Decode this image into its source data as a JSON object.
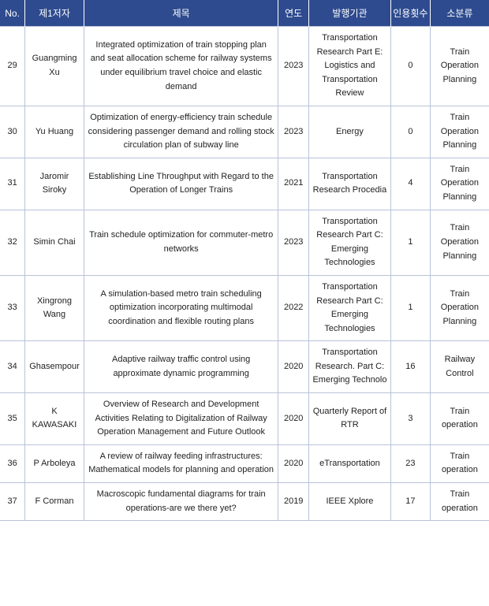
{
  "header": {
    "no": "No.",
    "author": "제1저자",
    "title": "제목",
    "year": "연도",
    "publisher": "발행기관",
    "citations": "인용횟수",
    "subcat": "소분류"
  },
  "rows": [
    {
      "no": "29",
      "author": "Guangming Xu",
      "title": "Integrated optimization of train stopping plan and seat allocation scheme for railway systems under equilibrium travel choice and elastic demand",
      "year": "2023",
      "publisher": "Transportation Research Part E: Logistics and Transportation Review",
      "citations": "0",
      "subcat": "Train Operation Planning"
    },
    {
      "no": "30",
      "author": "Yu Huang",
      "title": "Optimization of energy-efficiency train schedule considering passenger demand and rolling stock circulation plan of subway line",
      "year": "2023",
      "publisher": "Energy",
      "citations": "0",
      "subcat": "Train Operation Planning"
    },
    {
      "no": "31",
      "author": "Jaromir Siroky",
      "title": "Establishing Line Throughput with Regard to the Operation of Longer Trains",
      "year": "2021",
      "publisher": "Transportation Research Procedia",
      "citations": "4",
      "subcat": "Train Operation Planning"
    },
    {
      "no": "32",
      "author": "Simin Chai",
      "title": "Train schedule optimization for commuter-metro networks",
      "year": "2023",
      "publisher": "Transportation Research Part C: Emerging Technologies",
      "citations": "1",
      "subcat": "Train Operation Planning"
    },
    {
      "no": "33",
      "author": "Xingrong Wang",
      "title": "A simulation-based metro train scheduling optimization incorporating multimodal coordination and flexible routing plans",
      "year": "2022",
      "publisher": "Transportation Research Part C: Emerging Technologies",
      "citations": "1",
      "subcat": "Train Operation Planning"
    },
    {
      "no": "34",
      "author": "Ghasempour",
      "title": "Adaptive railway traffic control using approximate dynamic programming",
      "year": "2020",
      "publisher": "Transportation Research. Part C: Emerging Technolo",
      "citations": "16",
      "subcat": "Railway Control"
    },
    {
      "no": "35",
      "author": "K KAWASAKI",
      "title": "Overview of Research and Development Activities Relating to Digitalization of Railway Operation Management and Future Outlook",
      "year": "2020",
      "publisher": "Quarterly Report of RTR",
      "citations": "3",
      "subcat": "Train operation"
    },
    {
      "no": "36",
      "author": "P Arboleya",
      "title": "A review of railway feeding infrastructures: Mathematical models for planning and operation",
      "year": "2020",
      "publisher": "eTransportation",
      "citations": "23",
      "subcat": "Train operation"
    },
    {
      "no": "37",
      "author": "F Corman",
      "title": "Macroscopic fundamental diagrams for train operations-are we there yet?",
      "year": "2019",
      "publisher": "IEEE Xplore",
      "citations": "17",
      "subcat": "Train operation"
    }
  ]
}
